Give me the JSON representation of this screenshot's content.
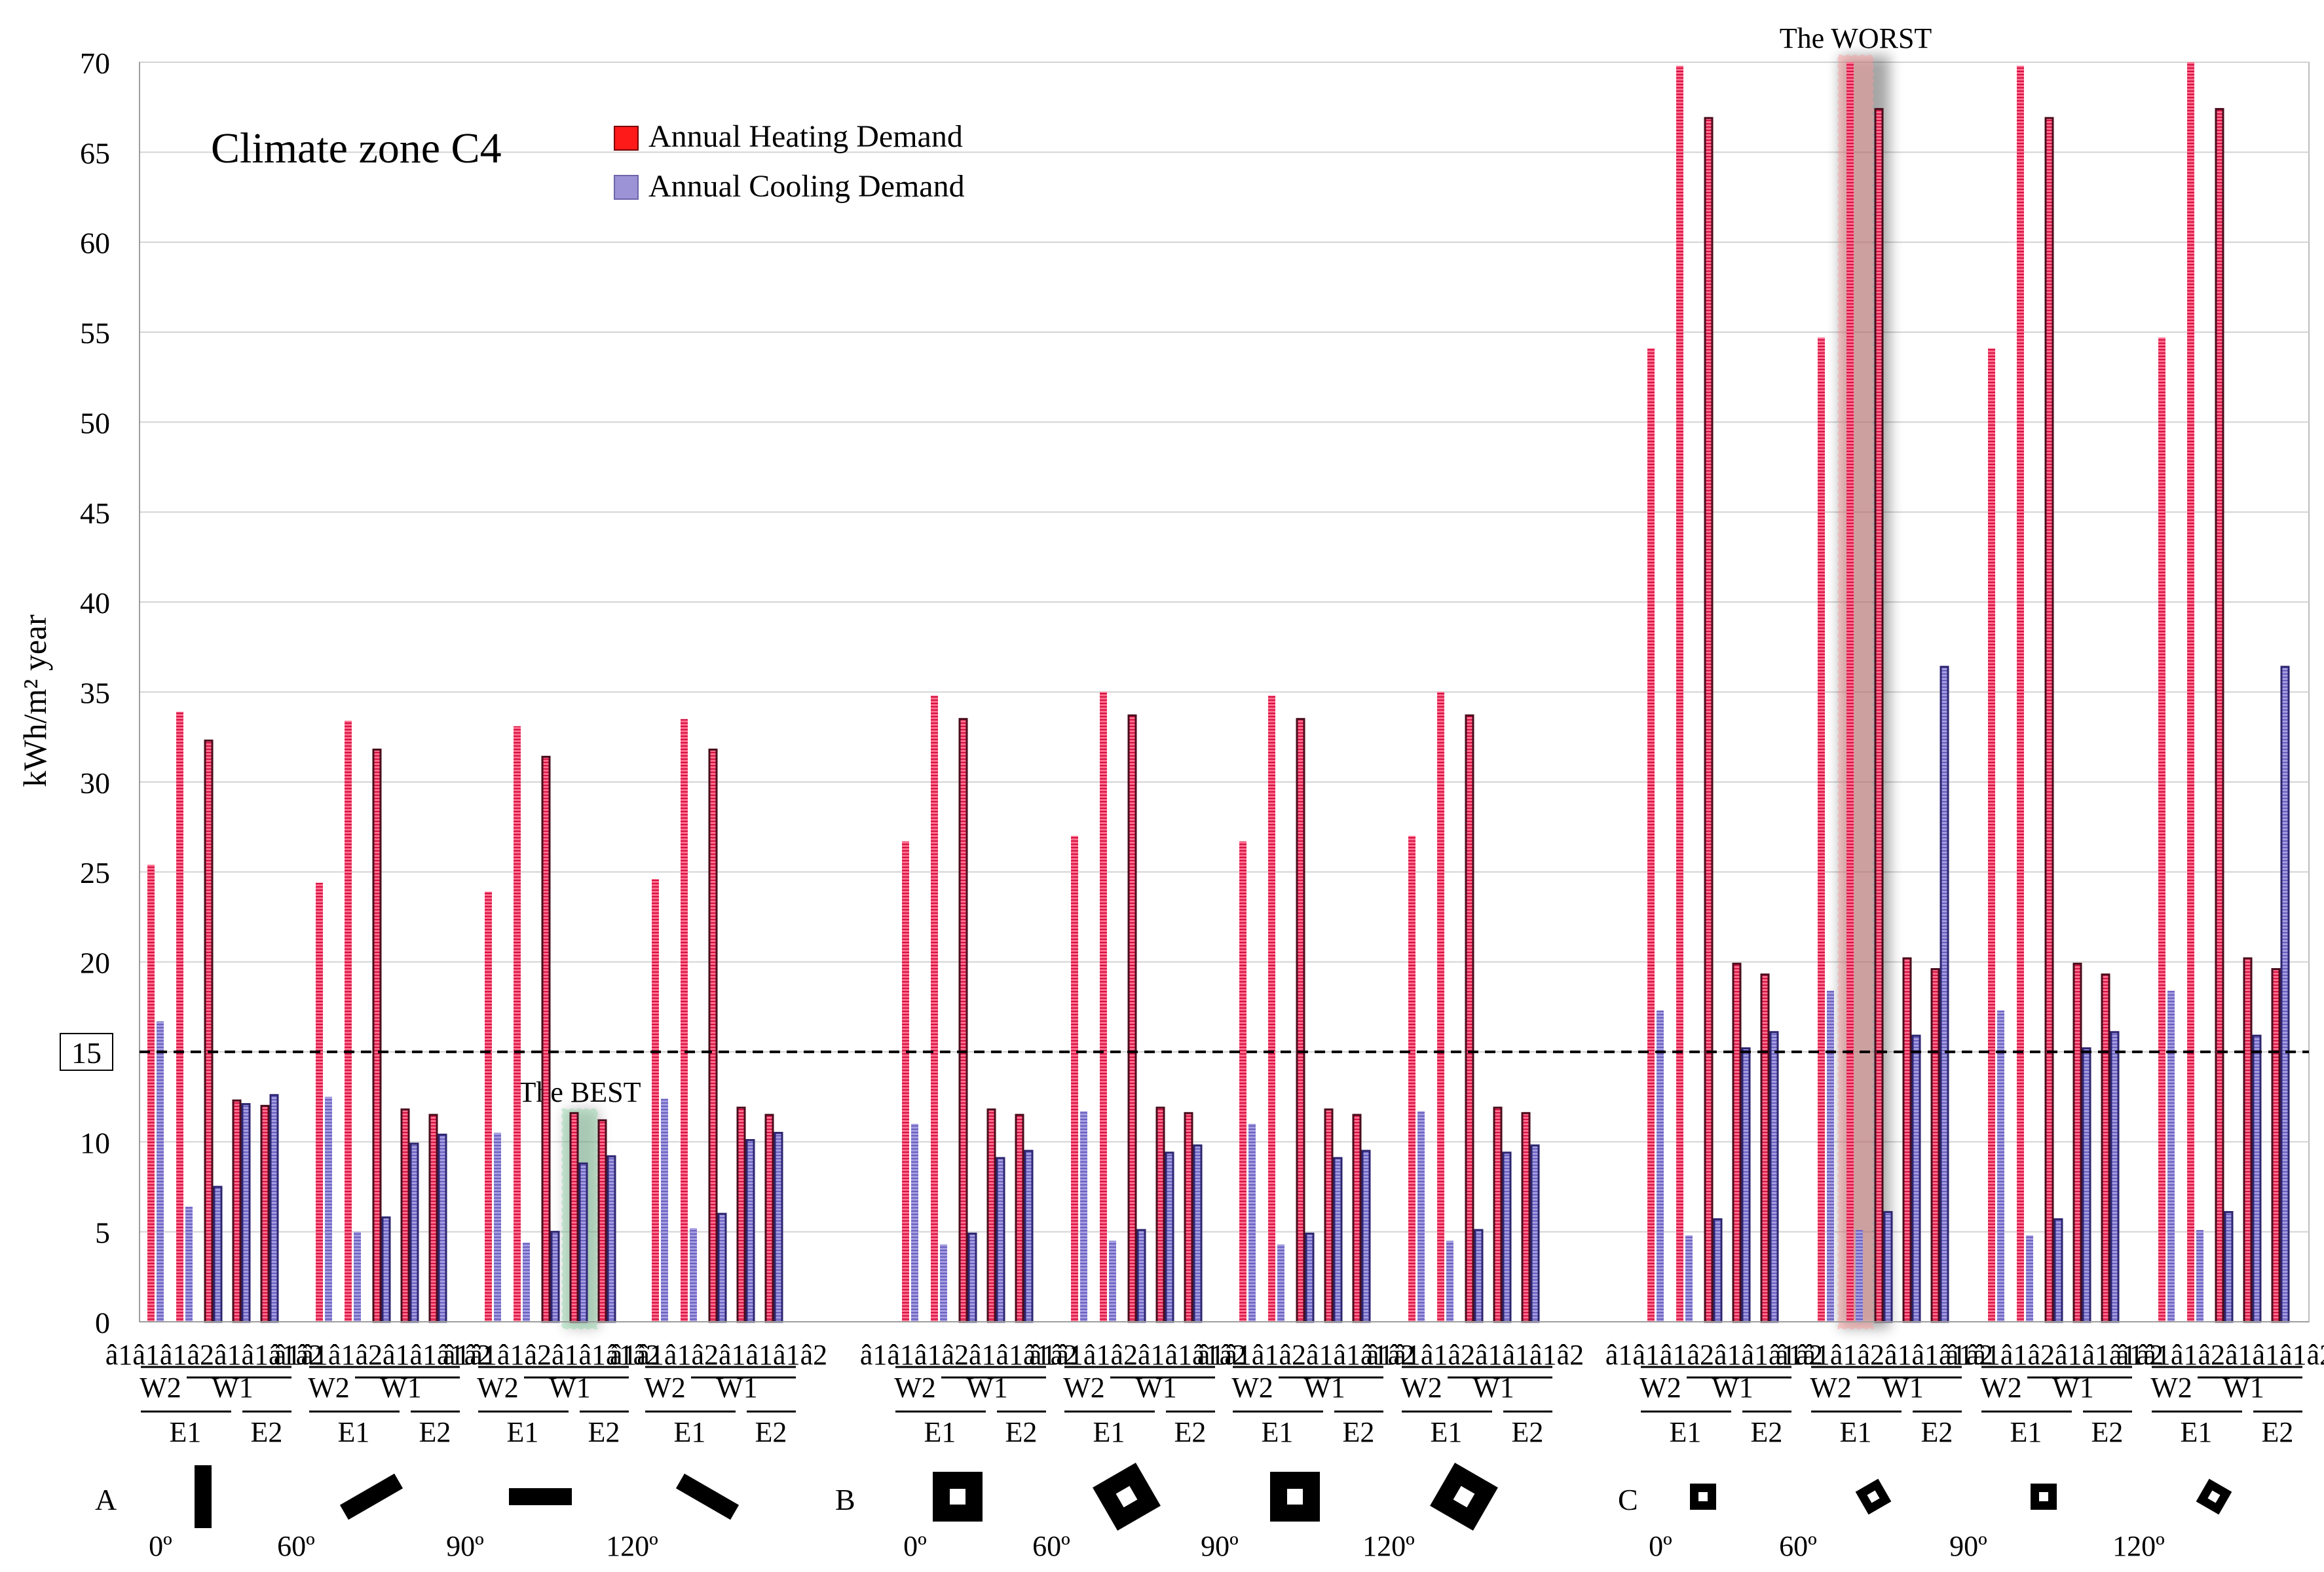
{
  "chart_data": {
    "type": "bar",
    "title": "Climate zone C4",
    "ylabel": "kWh/m² year",
    "ylim": [
      0,
      70
    ],
    "yticks": [
      0,
      5,
      10,
      15,
      20,
      25,
      30,
      35,
      40,
      45,
      50,
      55,
      60,
      65,
      70
    ],
    "threshold": {
      "value": 15,
      "label": "15",
      "style": "dashed"
    },
    "legend": [
      {
        "name": "Annual Heating Demand",
        "color": "#ff1a1a"
      },
      {
        "name": "Annual Cooling Demand",
        "color": "#9b93d6"
      }
    ],
    "bar_labels": [
      "â1â1",
      "â1â2",
      "â1â1",
      "â1â2",
      "â1â1",
      "â1â2",
      "â1â1",
      "â1â2"
    ],
    "bar_label_row": "â1â1â1â2â1â1â1â2",
    "window_labels": [
      "W2",
      "W1",
      "E1",
      "E2"
    ],
    "series": [
      {
        "name": "Annual Heating Demand",
        "color": "#ff1a1a"
      },
      {
        "name": "Annual Cooling Demand",
        "color": "#9b93d6"
      }
    ],
    "groups": [
      {
        "shape": "A",
        "angle": "0º",
        "heating": [
          25.4,
          33.9,
          32.3,
          12.3,
          12.0
        ],
        "cooling": [
          16.7,
          6.4,
          7.5,
          12.1,
          12.6
        ]
      },
      {
        "shape": "A",
        "angle": "60º",
        "heating": [
          24.4,
          33.4,
          31.8,
          11.8,
          11.5
        ],
        "cooling": [
          12.5,
          5.0,
          5.8,
          9.9,
          10.4
        ]
      },
      {
        "shape": "A",
        "angle": "90º",
        "heating": [
          23.9,
          33.1,
          31.4,
          11.6,
          11.2
        ],
        "cooling": [
          10.5,
          4.4,
          5.0,
          8.8,
          9.2
        ]
      },
      {
        "shape": "A",
        "angle": "120º",
        "heating": [
          24.6,
          33.5,
          31.8,
          11.9,
          11.5
        ],
        "cooling": [
          12.4,
          5.2,
          6.0,
          10.1,
          10.5
        ]
      },
      {
        "shape": "B",
        "angle": "0º",
        "heating": [
          26.7,
          34.8,
          33.5,
          11.8,
          11.5
        ],
        "cooling": [
          11.0,
          4.3,
          4.9,
          9.1,
          9.5
        ]
      },
      {
        "shape": "B",
        "angle": "60º",
        "heating": [
          27.0,
          35.0,
          33.7,
          11.9,
          11.6
        ],
        "cooling": [
          11.7,
          4.5,
          5.1,
          9.4,
          9.8
        ]
      },
      {
        "shape": "B",
        "angle": "90º",
        "heating": [
          26.7,
          34.8,
          33.5,
          11.8,
          11.5
        ],
        "cooling": [
          11.0,
          4.3,
          4.9,
          9.1,
          9.5
        ]
      },
      {
        "shape": "B",
        "angle": "120º",
        "heating": [
          27.0,
          35.0,
          33.7,
          11.9,
          11.6
        ],
        "cooling": [
          11.7,
          4.5,
          5.1,
          9.4,
          9.8
        ]
      },
      {
        "shape": "C",
        "angle": "0º",
        "heating": [
          54.1,
          69.8,
          66.9,
          19.9,
          19.3
        ],
        "cooling": [
          17.3,
          4.8,
          5.7,
          15.2,
          16.1
        ]
      },
      {
        "shape": "C",
        "angle": "60º",
        "heating": [
          54.7,
          70.0,
          67.4,
          20.2,
          19.6
        ],
        "cooling": [
          18.4,
          5.1,
          6.1,
          15.9,
          36.4
        ]
      },
      {
        "shape": "C",
        "angle": "90º",
        "heating": [
          54.1,
          69.8,
          66.9,
          19.9,
          19.3
        ],
        "cooling": [
          17.3,
          4.8,
          5.7,
          15.2,
          16.1
        ]
      },
      {
        "shape": "C",
        "angle": "120º",
        "heating": [
          54.7,
          70.0,
          67.4,
          20.2,
          19.6
        ],
        "cooling": [
          18.4,
          5.1,
          6.1,
          15.9,
          36.4
        ]
      }
    ],
    "shape_labels": [
      "A",
      "B",
      "C"
    ],
    "annotations": [
      {
        "text": "The BEST",
        "group": 2,
        "pair": 3,
        "color": "#8fd6a8"
      },
      {
        "text": "The WORST",
        "group": 9,
        "pair": 1,
        "color": "#ff9a9a"
      }
    ]
  }
}
